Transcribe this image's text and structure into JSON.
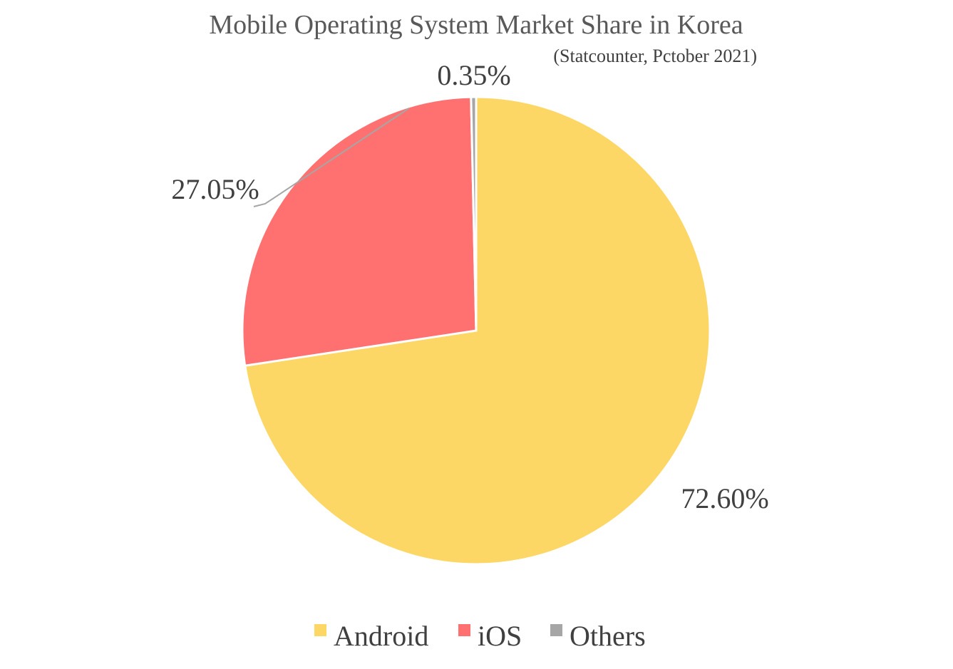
{
  "chart_data": {
    "type": "pie",
    "title": "Mobile Operating System Market Share in Korea",
    "subtitle": "(Statcounter, Pctober 2021)",
    "categories": [
      "Android",
      "iOS",
      "Others"
    ],
    "values": [
      72.6,
      27.05,
      0.35
    ],
    "data_labels": [
      "72.60%",
      "27.05%",
      "0.35%"
    ],
    "colors": [
      "#FDD766",
      "#FF7070",
      "#A6A6A6"
    ],
    "start_angle_deg": 0,
    "direction": "clockwise",
    "legend_position": "bottom",
    "leader_lines": true
  }
}
